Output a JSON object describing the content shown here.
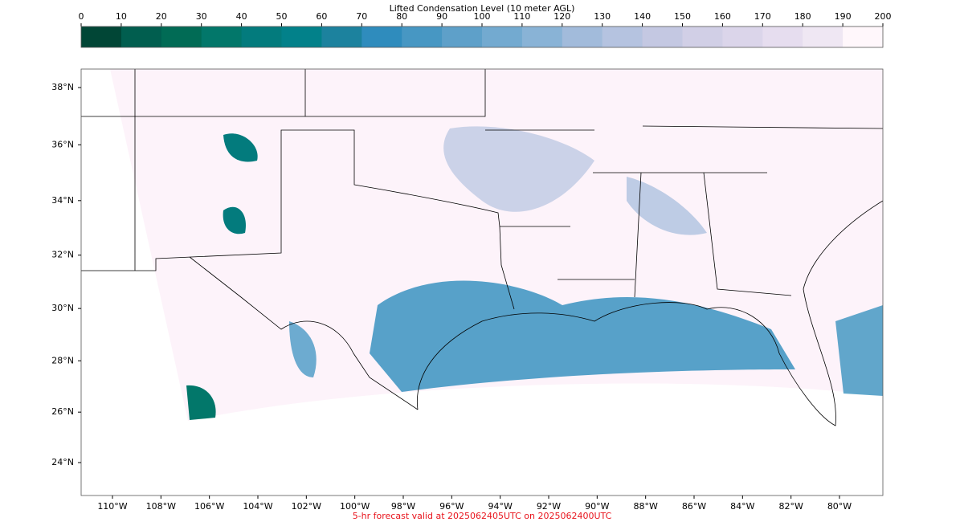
{
  "colorbar": {
    "title": "Lifted Condensation Level (10 meter AGL)",
    "ticks": [
      0,
      10,
      20,
      30,
      40,
      50,
      60,
      70,
      80,
      90,
      100,
      110,
      120,
      130,
      140,
      150,
      160,
      170,
      180,
      190,
      200
    ],
    "colors": [
      "#014636",
      "#015e4f",
      "#016b55",
      "#02776a",
      "#037b7d",
      "#02818a",
      "#1c829e",
      "#2f8cbd",
      "#4797c3",
      "#5ea0c9",
      "#73aad0",
      "#89b3d6",
      "#a2bbdb",
      "#b5c3e0",
      "#c4c8e2",
      "#d1cfe6",
      "#dbd5ea",
      "#e6ddef",
      "#efe7f3",
      "#fff7fb"
    ]
  },
  "map": {
    "lat_labels": [
      {
        "value": 38,
        "label": "38°N"
      },
      {
        "value": 36,
        "label": "36°N"
      },
      {
        "value": 34,
        "label": "34°N"
      },
      {
        "value": 32,
        "label": "32°N"
      },
      {
        "value": 30,
        "label": "30°N"
      },
      {
        "value": 28,
        "label": "28°N"
      },
      {
        "value": 26,
        "label": "26°N"
      },
      {
        "value": 24,
        "label": "24°N"
      }
    ],
    "lon_labels": [
      {
        "value": -110,
        "label": "110°W"
      },
      {
        "value": -108,
        "label": "108°W"
      },
      {
        "value": -106,
        "label": "106°W"
      },
      {
        "value": -104,
        "label": "104°W"
      },
      {
        "value": -102,
        "label": "102°W"
      },
      {
        "value": -100,
        "label": "100°W"
      },
      {
        "value": -98,
        "label": "98°W"
      },
      {
        "value": -96,
        "label": "96°W"
      },
      {
        "value": -94,
        "label": "94°W"
      },
      {
        "value": -92,
        "label": "92°W"
      },
      {
        "value": -90,
        "label": "90°W"
      },
      {
        "value": -88,
        "label": "88°W"
      },
      {
        "value": -86,
        "label": "86°W"
      },
      {
        "value": -84,
        "label": "84°W"
      },
      {
        "value": -82,
        "label": "82°W"
      },
      {
        "value": -80,
        "label": "80°W"
      }
    ],
    "footer": "5-hr forecast valid at 2025062405UTC on 2025062400UTC"
  }
}
